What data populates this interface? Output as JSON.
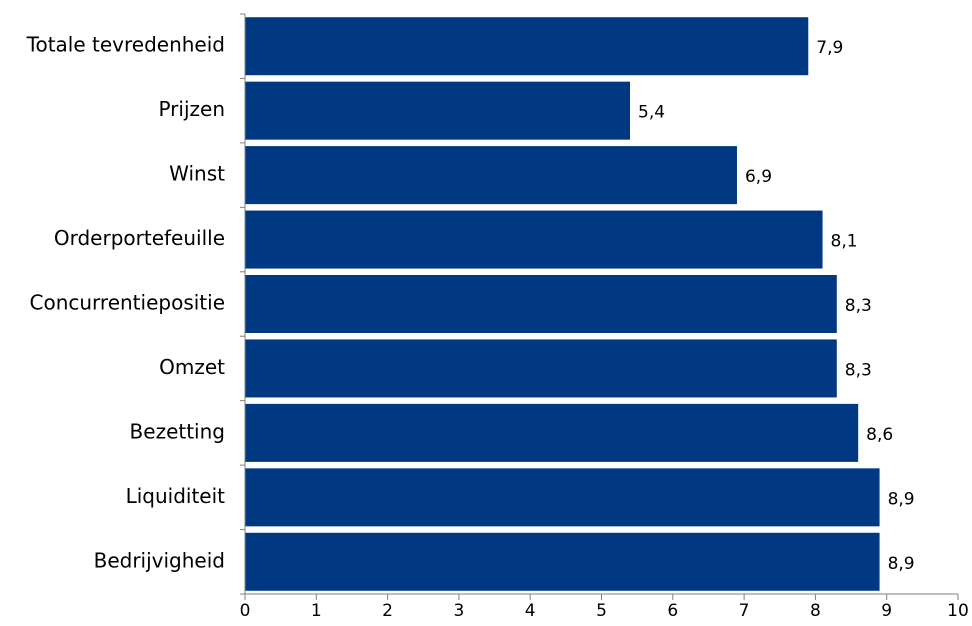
{
  "chart_data": {
    "type": "bar",
    "orientation": "horizontal",
    "categories": [
      "Totale tevredenheid",
      "Prijzen",
      "Winst",
      "Orderportefeuille",
      "Concurrentiepositie",
      "Omzet",
      "Bezetting",
      "Liquiditeit",
      "Bedrijvigheid"
    ],
    "values": [
      7.9,
      5.4,
      6.9,
      8.1,
      8.3,
      8.3,
      8.6,
      8.9,
      8.9
    ],
    "value_labels": [
      "7,9",
      "5,4",
      "6,9",
      "8,1",
      "8,3",
      "8,3",
      "8,6",
      "8,9",
      "8,9"
    ],
    "xlim": [
      0,
      10
    ],
    "xticks": [
      "0",
      "1",
      "2",
      "3",
      "4",
      "5",
      "6",
      "7",
      "8",
      "9",
      "10"
    ],
    "title": "",
    "xlabel": "",
    "ylabel": "",
    "grid": false,
    "legend": "none",
    "bar_color": "#003882"
  }
}
